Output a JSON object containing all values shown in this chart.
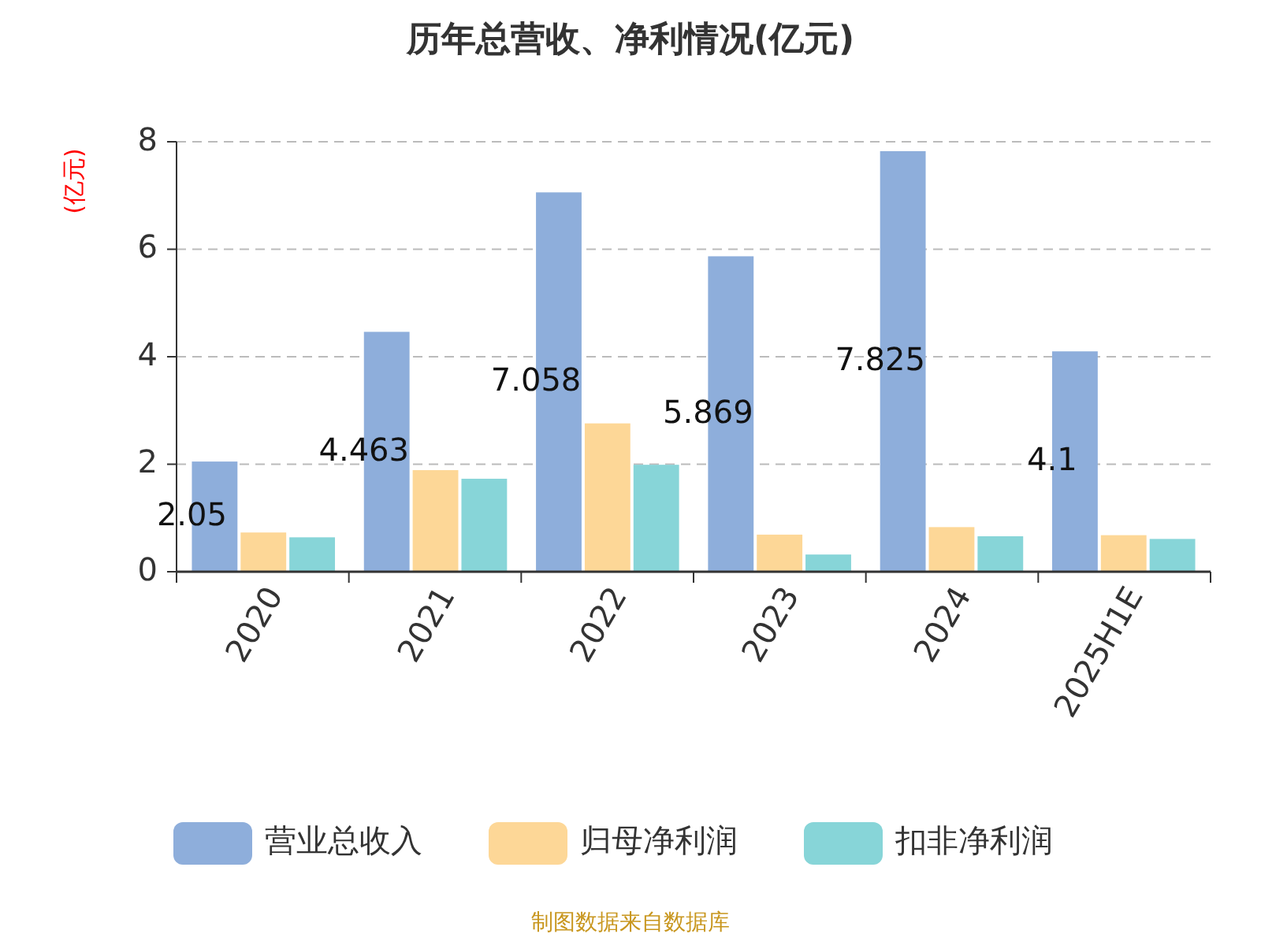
{
  "chart_data": {
    "type": "bar",
    "title": "历年总营收、净利情况(亿元)",
    "ylabel": "(亿元)",
    "categories": [
      "2020",
      "2021",
      "2022",
      "2023",
      "2024",
      "2025H1E"
    ],
    "series": [
      {
        "name": "营业总收入",
        "color": "#8eaedb",
        "values": [
          2.05,
          4.463,
          7.058,
          5.869,
          7.825,
          4.1
        ],
        "value_labels": [
          "2.05",
          "4.463",
          "7.058",
          "5.869",
          "7.825",
          "4.1"
        ]
      },
      {
        "name": "归母净利润",
        "color": "#fdd797",
        "values": [
          0.73,
          1.89,
          2.76,
          0.69,
          0.83,
          0.68
        ]
      },
      {
        "name": "扣非净利润",
        "color": "#87d5d8",
        "values": [
          0.64,
          1.73,
          1.99,
          0.32,
          0.66,
          0.61
        ]
      }
    ],
    "ylim": [
      0,
      8
    ],
    "yticks": [
      0,
      2,
      4,
      6,
      8
    ],
    "grid": "y",
    "legend": "bottom",
    "annotations": [
      "制图数据来自数据库"
    ]
  }
}
